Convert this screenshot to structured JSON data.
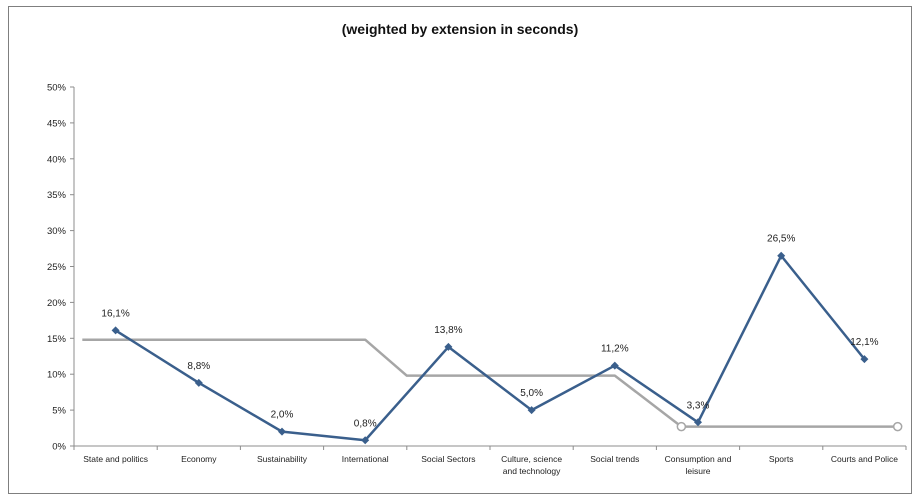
{
  "chart_data": {
    "type": "line",
    "title": "(weighted by extension in seconds)",
    "xlabel": "",
    "ylabel": "",
    "ylim": [
      0,
      50
    ],
    "y_ticks": [
      "0%",
      "5%",
      "10%",
      "15%",
      "20%",
      "25%",
      "30%",
      "35%",
      "40%",
      "45%",
      "50%"
    ],
    "grid": false,
    "categories": [
      "State and politics",
      "Economy",
      "Sustainability",
      "International",
      "Social Sectors",
      "Culture, science and technology",
      "Social trends",
      "Consumption and leisure",
      "Sports",
      "Courts and Police"
    ],
    "series": [
      {
        "color": "#3a5f8c",
        "marker": "diamond",
        "values": [
          16.1,
          8.8,
          2.0,
          0.8,
          13.8,
          5.0,
          11.2,
          3.3,
          26.5,
          12.1
        ],
        "labels": [
          "16,1%",
          "8,8%",
          "2,0%",
          "0,8%",
          "13,8%",
          "5,0%",
          "11,2%",
          "3,3%",
          "26,5%",
          "12,1%"
        ]
      },
      {
        "color": "#a6a6a6",
        "marker": "open-circle",
        "x": [
          -0.4,
          3.0,
          3.5,
          6.0,
          6.8,
          9.4
        ],
        "values": [
          14.8,
          14.8,
          9.8,
          9.8,
          2.7,
          2.7
        ],
        "marker_indices": [
          4,
          5
        ]
      }
    ]
  }
}
